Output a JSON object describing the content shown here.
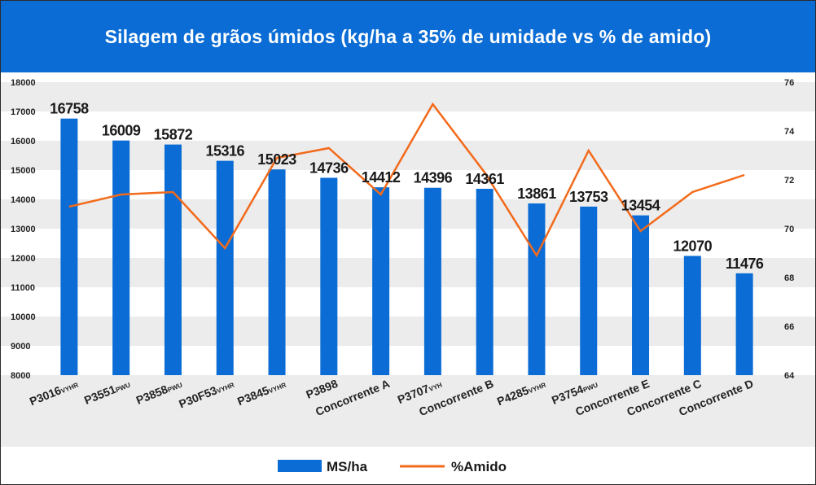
{
  "chart_data": {
    "type": "bar",
    "title": "Silagem de grãos úmidos (kg/ha a 35% de umidade vs % de amido)",
    "categories": [
      {
        "main": "P3016",
        "sub": "VYHR"
      },
      {
        "main": "P3551",
        "sub": "PWU"
      },
      {
        "main": "P3858",
        "sub": "PWU"
      },
      {
        "main": "P30F53",
        "sub": "VYHR"
      },
      {
        "main": "P3845",
        "sub": "VYHR"
      },
      {
        "main": "P3898",
        "sub": ""
      },
      {
        "main": "Concorrente A",
        "sub": ""
      },
      {
        "main": "P3707",
        "sub": "VYH"
      },
      {
        "main": "Concorrente B",
        "sub": ""
      },
      {
        "main": "P4285",
        "sub": "VYHR"
      },
      {
        "main": "P3754",
        "sub": "PWU"
      },
      {
        "main": "Concorrente E",
        "sub": ""
      },
      {
        "main": "Concorrente C",
        "sub": ""
      },
      {
        "main": "Concorrente D",
        "sub": ""
      }
    ],
    "series": [
      {
        "name": "MS/ha",
        "type": "bar",
        "axis": "left",
        "color": "#0a6cd4",
        "values": [
          16758,
          16009,
          15872,
          15316,
          15023,
          14736,
          14412,
          14396,
          14361,
          13861,
          13753,
          13454,
          12070,
          11476
        ]
      },
      {
        "name": "%Amido",
        "type": "line",
        "axis": "right",
        "color": "#f26a1b",
        "values": [
          70.9,
          71.4,
          71.5,
          69.2,
          72.9,
          73.3,
          71.4,
          75.1,
          72.3,
          68.9,
          73.2,
          69.9,
          71.5,
          72.2
        ]
      }
    ],
    "y_left": {
      "min": 8000,
      "max": 18000,
      "ticks": [
        8000,
        9000,
        10000,
        11000,
        12000,
        13000,
        14000,
        15000,
        16000,
        17000,
        18000
      ]
    },
    "y_right": {
      "min": 64,
      "max": 76,
      "ticks": [
        64,
        66,
        68,
        70,
        72,
        74,
        76
      ]
    },
    "legend": [
      {
        "label": "MS/ha",
        "kind": "bar"
      },
      {
        "label": "%Amido",
        "kind": "line"
      }
    ],
    "legend_position": "bottom",
    "banded_background": true
  }
}
